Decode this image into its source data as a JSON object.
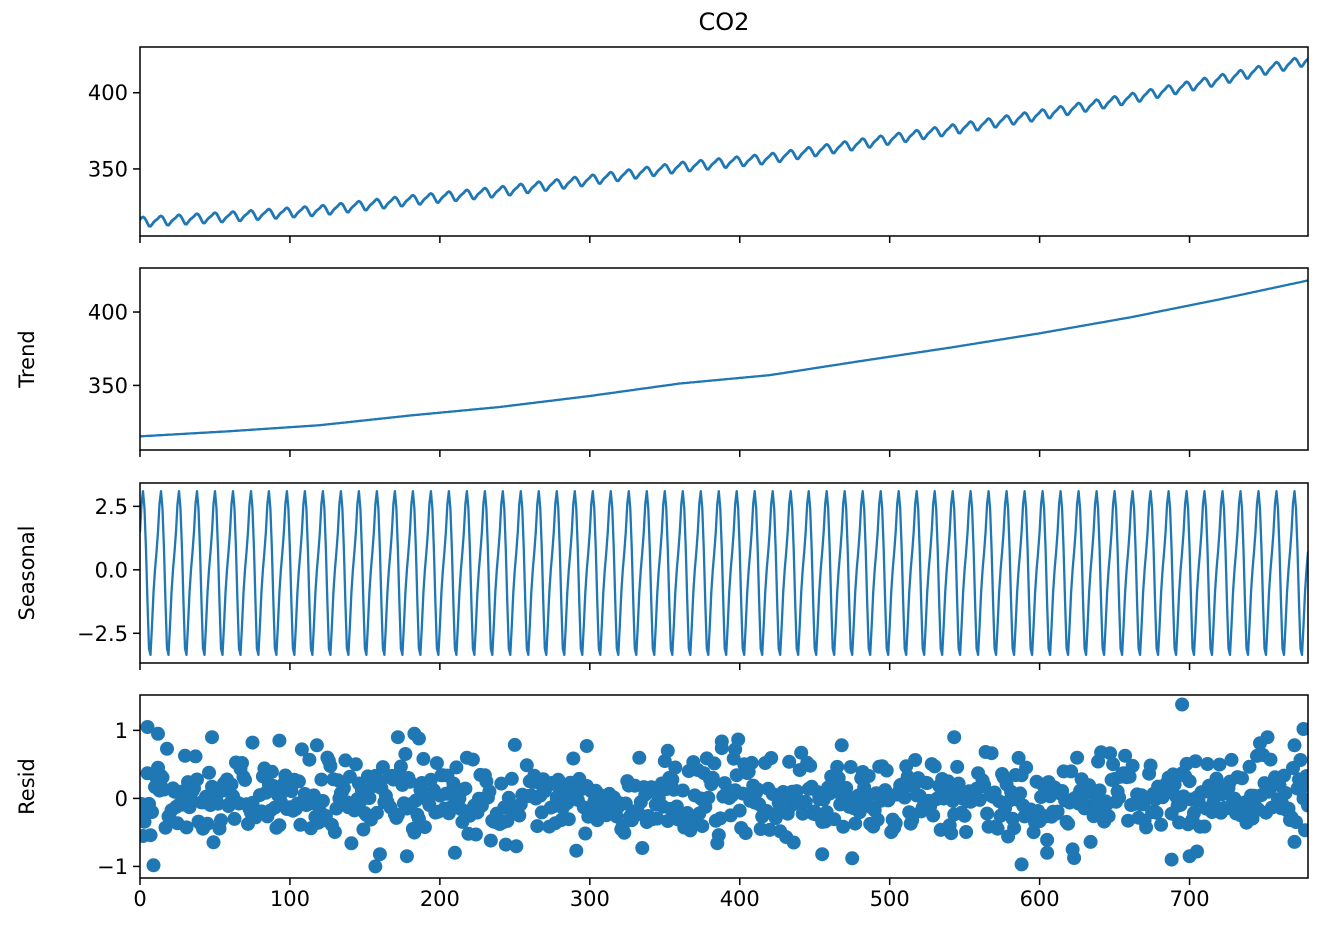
{
  "chart_data": {
    "type": "line",
    "title": "CO2",
    "description": "Seasonal decomposition of a monthly CO2 concentration series: observed, trend, seasonal and residual components stacked in four subplots sharing one x axis",
    "n_points": 780,
    "xlim": [
      0,
      779
    ],
    "x_ticks": [
      {
        "v": 0,
        "label": "0"
      },
      {
        "v": 100,
        "label": "100"
      },
      {
        "v": 200,
        "label": "200"
      },
      {
        "v": 300,
        "label": "300"
      },
      {
        "v": 400,
        "label": "400"
      },
      {
        "v": 500,
        "label": "500"
      },
      {
        "v": 600,
        "label": "600"
      },
      {
        "v": 700,
        "label": "700"
      }
    ],
    "line_color": "#1f77b4",
    "marker_color": "#1f77b4",
    "axis_color": "#000000",
    "background_color": "#ffffff",
    "subplots": [
      {
        "id": "observed",
        "ylabel": "",
        "kind": "line",
        "ylim": [
          306,
          430
        ],
        "yticks": [
          {
            "v": 400,
            "label": "400"
          },
          {
            "v": 350,
            "label": "350"
          }
        ]
      },
      {
        "id": "trend",
        "ylabel": "Trend",
        "kind": "line",
        "ylim": [
          306,
          430
        ],
        "yticks": [
          {
            "v": 400,
            "label": "400"
          },
          {
            "v": 350,
            "label": "350"
          }
        ]
      },
      {
        "id": "seasonal",
        "ylabel": "Seasonal",
        "kind": "line",
        "ylim": [
          -3.67,
          3.42
        ],
        "yticks": [
          {
            "v": 2.5,
            "label": "2.5"
          },
          {
            "v": 0,
            "label": "0.0"
          },
          {
            "v": -2.5,
            "label": "−2.5"
          }
        ]
      },
      {
        "id": "resid",
        "ylabel": "Resid",
        "kind": "scatter",
        "ylim": [
          -1.17,
          1.52
        ],
        "yticks": [
          {
            "v": 1,
            "label": "1"
          },
          {
            "v": 0,
            "label": "0"
          },
          {
            "v": -1,
            "label": "−1"
          }
        ]
      }
    ],
    "trend_keypoints": {
      "x": [
        0,
        60,
        120,
        180,
        240,
        300,
        360,
        420,
        480,
        540,
        600,
        660,
        720,
        779
      ],
      "y": [
        315.3,
        318.8,
        322.9,
        329.5,
        335.3,
        342.8,
        351.3,
        357.0,
        366.5,
        375.7,
        385.5,
        396.3,
        408.6,
        421.5
      ]
    },
    "seasonal_pattern": [
      1.5,
      2.6,
      3.1,
      2.4,
      0.8,
      -1.3,
      -3.1,
      -3.35,
      -2.2,
      -0.9,
      0.0,
      0.7
    ],
    "seasonal_range": [
      -3.35,
      3.1
    ],
    "resid_model": {
      "distribution": "normal",
      "mean": 0,
      "std": 0.3,
      "seed": 42,
      "clip": [
        -1.08,
        1.42
      ]
    },
    "resid_outliers": [
      [
        5,
        1.05
      ],
      [
        12,
        0.95
      ],
      [
        48,
        0.9
      ],
      [
        75,
        0.82
      ],
      [
        93,
        0.85
      ],
      [
        118,
        0.78
      ],
      [
        157,
        -1.0
      ],
      [
        160,
        -0.82
      ],
      [
        172,
        0.9
      ],
      [
        178,
        -0.85
      ],
      [
        183,
        0.95
      ],
      [
        186,
        0.88
      ],
      [
        210,
        -0.8
      ],
      [
        298,
        0.77
      ],
      [
        352,
        0.7
      ],
      [
        388,
        0.74
      ],
      [
        397,
        0.72
      ],
      [
        455,
        -0.82
      ],
      [
        468,
        0.78
      ],
      [
        475,
        -0.88
      ],
      [
        543,
        0.9
      ],
      [
        588,
        -0.97
      ],
      [
        605,
        -0.8
      ],
      [
        622,
        -0.75
      ],
      [
        688,
        -0.9
      ],
      [
        695,
        1.38
      ],
      [
        700,
        -0.85
      ],
      [
        705,
        -0.78
      ],
      [
        752,
        0.9
      ],
      [
        770,
        0.78
      ],
      [
        776,
        1.02
      ]
    ]
  }
}
